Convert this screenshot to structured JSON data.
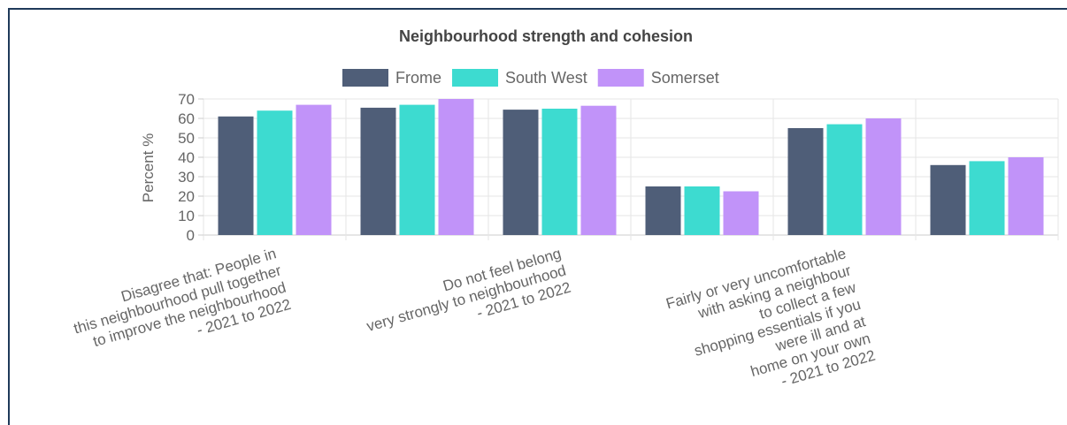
{
  "chart_data": {
    "type": "bar",
    "title": "Neighbourhood strength and cohesion",
    "ylabel": "Percent %",
    "xlabel": "",
    "ylim": [
      0,
      70
    ],
    "yticks": [
      0,
      10,
      20,
      30,
      40,
      50,
      60,
      70
    ],
    "grid": true,
    "legend_position": "top",
    "categories": [
      "Disagree that: People in this neighbourhood pull together to improve the neighbourhood - 2021 to 2022",
      "",
      "Do not feel belong very strongly to neighbourhood - 2021 to 2022",
      "",
      "Fairly or very uncomfortable with asking a neighbour to collect a few shopping essentials if you were ill and at home on your own - 2021 to 2022",
      ""
    ],
    "category_label_lines": [
      [
        "Disagree that: People in",
        "this neighbourhood pull together",
        "to improve the neighbourhood",
        "- 2021 to 2022"
      ],
      [],
      [
        "Do not feel belong",
        "very strongly to neighbourhood",
        "- 2021 to 2022"
      ],
      [],
      [
        "Fairly or very uncomfortable",
        "with asking a neighbour",
        "to collect a few",
        "shopping essentials if you",
        "were ill and at",
        "home on your own",
        "- 2021 to 2022"
      ],
      []
    ],
    "series": [
      {
        "name": "Frome",
        "color": "#4f5e78",
        "values": [
          61,
          65.5,
          64.5,
          25,
          55,
          36
        ]
      },
      {
        "name": "South West",
        "color": "#3ddbd0",
        "values": [
          64,
          67,
          65,
          25,
          57,
          38
        ]
      },
      {
        "name": "Somerset",
        "color": "#c193f9",
        "values": [
          67,
          70,
          66.5,
          22.5,
          60,
          40
        ]
      }
    ]
  }
}
